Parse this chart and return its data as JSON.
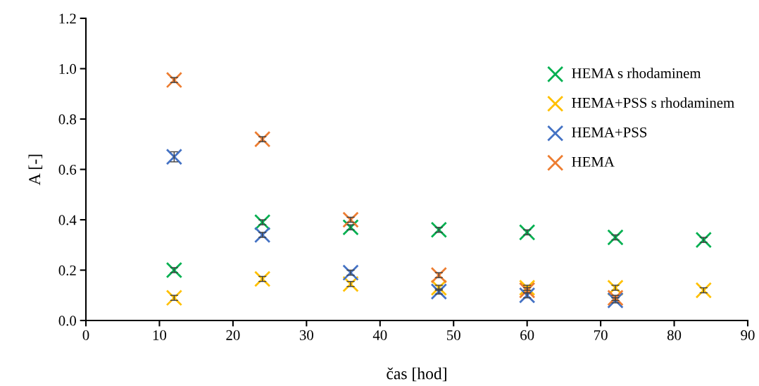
{
  "chart_data": {
    "type": "scatter",
    "xlabel": "čas [hod]",
    "ylabel": "A [-]",
    "xlim": [
      0,
      90
    ],
    "xticks": [
      0,
      10,
      20,
      30,
      40,
      50,
      60,
      70,
      80,
      90
    ],
    "ylim": [
      0,
      1.2
    ],
    "yticks": [
      {
        "value": 0,
        "label": "0.0"
      },
      {
        "value": 0.2,
        "label": "0.2"
      },
      {
        "value": 0.4,
        "label": "0.4"
      },
      {
        "value": 0.6,
        "label": "0.6"
      },
      {
        "value": 0.8,
        "label": "0.8"
      },
      {
        "value": 1.0,
        "label": "1.0"
      },
      {
        "value": 1.2,
        "label": "1.2"
      }
    ],
    "grid": false,
    "legend": "top right",
    "marker": "cross",
    "series": [
      {
        "name": "HEMA s rhodaminem",
        "color": "#00b050",
        "x": [
          12,
          24,
          36,
          48,
          60,
          72,
          84
        ],
        "values": [
          0.2,
          0.39,
          0.37,
          0.36,
          0.35,
          0.33,
          0.32
        ],
        "errors": [
          0.01,
          0.01,
          0.01,
          0.01,
          0.01,
          0.01,
          0.01
        ]
      },
      {
        "name": "HEMA+PSS s rhodaminem",
        "color": "#ffc000",
        "x": [
          12,
          24,
          36,
          48,
          60,
          72,
          84
        ],
        "values": [
          0.09,
          0.165,
          0.145,
          0.13,
          0.13,
          0.13,
          0.12
        ],
        "errors": [
          0.01,
          0.01,
          0.01,
          0.01,
          0.01,
          0.01,
          0.01
        ]
      },
      {
        "name": "HEMA+PSS",
        "color": "#4472c4",
        "x": [
          12,
          24,
          36,
          48,
          60,
          72
        ],
        "values": [
          0.65,
          0.34,
          0.19,
          0.115,
          0.1,
          0.08
        ],
        "errors": [
          0.02,
          0.01,
          0.01,
          0.01,
          0.01,
          0.01
        ]
      },
      {
        "name": "HEMA",
        "color": "#ed7d31",
        "x": [
          12,
          24,
          36,
          48,
          60,
          72
        ],
        "values": [
          0.955,
          0.72,
          0.4,
          0.18,
          0.12,
          0.09
        ],
        "errors": [
          0.01,
          0.01,
          0.01,
          0.01,
          0.01,
          0.01
        ]
      }
    ]
  }
}
